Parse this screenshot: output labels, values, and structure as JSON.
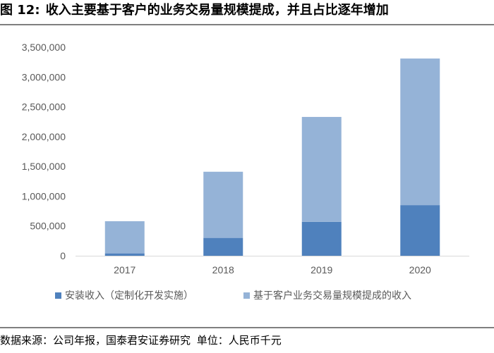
{
  "title": {
    "figure_label": "图 12:",
    "text": "收入主要基于客户的业务交易量规模提成，并且占比逐年增加"
  },
  "source": {
    "label": "数据来源：公司年报，国泰君安证券研究",
    "unit": "单位：人民币千元"
  },
  "colors": {
    "series1": "#4f81bd",
    "series2": "#95b3d7"
  },
  "chart_data": {
    "type": "bar",
    "stacked": true,
    "categories": [
      "2017",
      "2018",
      "2019",
      "2020"
    ],
    "series": [
      {
        "name": "安装收入（定制化开发实施）",
        "values": [
          40000,
          300000,
          570000,
          850000
        ]
      },
      {
        "name": "基于客户业务交易量规模提成的收入",
        "values": [
          540000,
          1110000,
          1760000,
          2460000
        ]
      }
    ],
    "ylim": [
      0,
      3500000
    ],
    "yticks": [
      "0",
      "500,000",
      "1,000,000",
      "1,500,000",
      "2,000,000",
      "2,500,000",
      "3,000,000",
      "3,500,000"
    ],
    "grid": false,
    "legend": "bottom"
  }
}
